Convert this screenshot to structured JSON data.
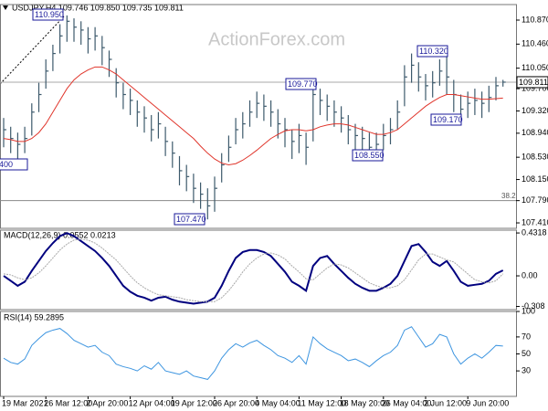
{
  "chart_data": [
    {
      "type": "ohlc",
      "title": "USDJPY,H4 109.746 109.850 109.735 109.811",
      "watermark": "ActionForex.com",
      "categories": [
        "19 Mar 2021",
        null,
        null,
        null,
        null,
        null,
        "26 Mar 12:00",
        null,
        null,
        null,
        null,
        null,
        "2 Apr 20:00",
        null,
        null,
        null,
        null,
        null,
        "12 Apr 04:00",
        null,
        null,
        null,
        null,
        null,
        "19 Apr 12:00",
        null,
        null,
        null,
        null,
        null,
        "26 Apr 20:00",
        null,
        null,
        null,
        null,
        null,
        "4 May 04:00",
        null,
        null,
        null,
        null,
        null,
        "11 May 12:00",
        null,
        null,
        null,
        null,
        null,
        "18 May 20:00",
        null,
        null,
        null,
        null,
        null,
        "26 May 04:00",
        null,
        null,
        null,
        null,
        null,
        "2 Jun 12:00",
        null,
        null,
        null,
        null,
        null,
        "9 Jun 20:00",
        null,
        null,
        null,
        null,
        null
      ],
      "high": [
        109.2,
        109.05,
        108.95,
        109.05,
        109.45,
        109.8,
        110.2,
        110.45,
        110.8,
        110.95,
        110.9,
        110.85,
        110.75,
        110.75,
        110.6,
        110.35,
        110.05,
        109.8,
        109.7,
        109.5,
        109.4,
        109.25,
        109.3,
        109.05,
        108.8,
        108.55,
        108.4,
        108.25,
        108.1,
        108.0,
        108.2,
        108.6,
        108.9,
        109.2,
        109.3,
        109.5,
        109.65,
        109.6,
        109.5,
        109.35,
        109.2,
        109.0,
        109.1,
        108.95,
        109.77,
        109.7,
        109.6,
        109.5,
        109.4,
        109.25,
        109.1,
        109.05,
        108.95,
        108.95,
        109.1,
        109.2,
        109.5,
        110.1,
        110.3,
        110.15,
        109.95,
        110.0,
        110.2,
        110.32,
        109.85,
        109.6,
        109.65,
        109.7,
        109.65,
        109.75,
        109.9,
        109.85
      ],
      "low": [
        108.7,
        108.6,
        108.45,
        108.6,
        108.9,
        109.3,
        109.7,
        110.0,
        110.3,
        110.5,
        110.5,
        110.45,
        110.3,
        110.35,
        110.1,
        109.9,
        109.55,
        109.35,
        109.25,
        109.05,
        108.95,
        108.8,
        108.85,
        108.55,
        108.35,
        108.05,
        107.95,
        107.75,
        107.65,
        107.47,
        107.6,
        108.1,
        108.45,
        108.75,
        108.85,
        109.05,
        109.2,
        109.15,
        109.05,
        108.85,
        108.7,
        108.5,
        108.6,
        108.4,
        108.8,
        109.25,
        109.15,
        109.05,
        108.95,
        108.75,
        108.65,
        108.6,
        108.55,
        108.55,
        108.65,
        108.75,
        109.0,
        109.4,
        109.8,
        109.65,
        109.5,
        109.55,
        109.75,
        109.6,
        109.3,
        109.17,
        109.2,
        109.25,
        109.2,
        109.3,
        109.5,
        109.735
      ],
      "close": [
        109.0,
        108.85,
        108.75,
        108.85,
        109.3,
        109.6,
        110.0,
        110.3,
        110.6,
        110.85,
        110.75,
        110.7,
        110.55,
        110.6,
        110.4,
        110.2,
        109.8,
        109.6,
        109.5,
        109.3,
        109.2,
        109.0,
        109.1,
        108.8,
        108.6,
        108.3,
        108.2,
        108.0,
        107.9,
        107.7,
        108.0,
        108.4,
        108.7,
        109.0,
        109.1,
        109.3,
        109.45,
        109.4,
        109.3,
        109.1,
        109.0,
        108.8,
        108.9,
        108.7,
        109.6,
        109.5,
        109.4,
        109.3,
        109.2,
        109.0,
        108.9,
        108.85,
        108.7,
        108.75,
        108.9,
        109.0,
        109.3,
        109.9,
        110.1,
        109.9,
        109.75,
        109.8,
        110.0,
        109.9,
        109.6,
        109.35,
        109.45,
        109.5,
        109.45,
        109.55,
        109.75,
        109.811
      ],
      "color": "#3d5a6c",
      "ma": {
        "color": "#e0352b",
        "values": [
          108.85,
          108.83,
          108.8,
          108.8,
          108.85,
          108.95,
          109.1,
          109.3,
          109.5,
          109.7,
          109.85,
          109.95,
          110.02,
          110.07,
          110.07,
          110.02,
          109.95,
          109.85,
          109.75,
          109.65,
          109.55,
          109.45,
          109.35,
          109.25,
          109.15,
          109.05,
          108.95,
          108.85,
          108.72,
          108.6,
          108.5,
          108.43,
          108.4,
          108.42,
          108.48,
          108.56,
          108.65,
          108.75,
          108.85,
          108.92,
          108.98,
          109.0,
          109.0,
          108.98,
          109.0,
          109.05,
          109.08,
          109.1,
          109.1,
          109.08,
          109.04,
          109.0,
          108.96,
          108.92,
          108.92,
          108.95,
          109.0,
          109.1,
          109.2,
          109.3,
          109.4,
          109.48,
          109.55,
          109.6,
          109.6,
          109.58,
          109.56,
          109.54,
          109.52,
          109.52,
          109.53,
          109.54
        ]
      },
      "ylim": [
        107.317,
        111.135
      ],
      "yticks": [
        {
          "value": 110.87,
          "label": "110.870"
        },
        {
          "value": 110.46,
          "label": "110.460"
        },
        {
          "value": 110.05,
          "label": "110.050"
        },
        {
          "value": 109.7,
          "label": "109.700"
        },
        {
          "value": 109.32,
          "label": "109.320"
        },
        {
          "value": 108.94,
          "label": "108.940"
        },
        {
          "value": 108.53,
          "label": "108.530"
        },
        {
          "value": 108.15,
          "label": "108.150"
        },
        {
          "value": 107.79,
          "label": "107.790"
        },
        {
          "value": 107.41,
          "label": "107.410"
        }
      ],
      "last_price": 109.811,
      "fib_line": 107.79,
      "fib_label": "38.2",
      "annotations": [
        "110.950",
        "109.770",
        "110.320",
        "109.170",
        "108.550",
        "107.470",
        "400"
      ]
    },
    {
      "type": "line",
      "title": "MACD(12,26,9) 0.0552 0.0213",
      "series": [
        {
          "color": "#00007f",
          "values": [
            0.0,
            -0.05,
            -0.1,
            -0.06,
            0.05,
            0.15,
            0.25,
            0.33,
            0.4,
            0.43,
            0.4,
            0.35,
            0.3,
            0.25,
            0.18,
            0.1,
            0.0,
            -0.1,
            -0.16,
            -0.2,
            -0.22,
            -0.25,
            -0.22,
            -0.21,
            -0.24,
            -0.26,
            -0.27,
            -0.28,
            -0.27,
            -0.26,
            -0.22,
            -0.1,
            0.05,
            0.18,
            0.24,
            0.26,
            0.26,
            0.24,
            0.2,
            0.12,
            0.04,
            -0.06,
            -0.1,
            -0.15,
            0.1,
            0.18,
            0.2,
            0.12,
            0.05,
            -0.02,
            -0.08,
            -0.12,
            -0.15,
            -0.15,
            -0.12,
            -0.08,
            0.0,
            0.15,
            0.3,
            0.32,
            0.24,
            0.14,
            0.1,
            0.15,
            0.05,
            -0.06,
            -0.1,
            -0.09,
            -0.08,
            -0.05,
            0.02,
            0.0552
          ]
        },
        {
          "color": "#a8a8a8",
          "values": [
            0.02,
            0.01,
            -0.02,
            -0.04,
            -0.02,
            0.03,
            0.1,
            0.18,
            0.26,
            0.32,
            0.36,
            0.37,
            0.36,
            0.33,
            0.28,
            0.22,
            0.16,
            0.08,
            0.0,
            -0.07,
            -0.12,
            -0.16,
            -0.19,
            -0.2,
            -0.21,
            -0.22,
            -0.24,
            -0.25,
            -0.26,
            -0.26,
            -0.26,
            -0.22,
            -0.15,
            -0.06,
            0.04,
            0.12,
            0.18,
            0.22,
            0.23,
            0.21,
            0.17,
            0.1,
            0.04,
            -0.03,
            -0.04,
            0.02,
            0.08,
            0.12,
            0.11,
            0.08,
            0.03,
            -0.02,
            -0.07,
            -0.1,
            -0.12,
            -0.12,
            -0.1,
            -0.04,
            0.06,
            0.16,
            0.22,
            0.22,
            0.19,
            0.16,
            0.14,
            0.08,
            0.02,
            -0.04,
            -0.06,
            -0.07,
            -0.05,
            0.0213
          ]
        }
      ],
      "ylim": [
        -0.34,
        0.46
      ],
      "yticks": [
        0.4318,
        {
          "value": 0,
          "label": "0.00"
        },
        -0.308
      ]
    },
    {
      "type": "line",
      "title": "RSI(14) 59.2895",
      "series": [
        {
          "color": "#3d95e0",
          "values": [
            45,
            40,
            38,
            44,
            60,
            68,
            75,
            78,
            80,
            74,
            66,
            62,
            58,
            60,
            52,
            48,
            38,
            35,
            33,
            30,
            36,
            32,
            40,
            30,
            28,
            26,
            30,
            24,
            22,
            20,
            30,
            45,
            55,
            62,
            58,
            63,
            66,
            60,
            55,
            48,
            45,
            40,
            48,
            38,
            70,
            62,
            56,
            52,
            48,
            42,
            44,
            40,
            35,
            42,
            48,
            52,
            60,
            78,
            82,
            70,
            58,
            62,
            73,
            70,
            50,
            38,
            45,
            50,
            45,
            52,
            60,
            59.2895
          ]
        }
      ],
      "ylim": [
        0,
        100
      ],
      "yticks": [
        100,
        70,
        50,
        30
      ]
    }
  ]
}
